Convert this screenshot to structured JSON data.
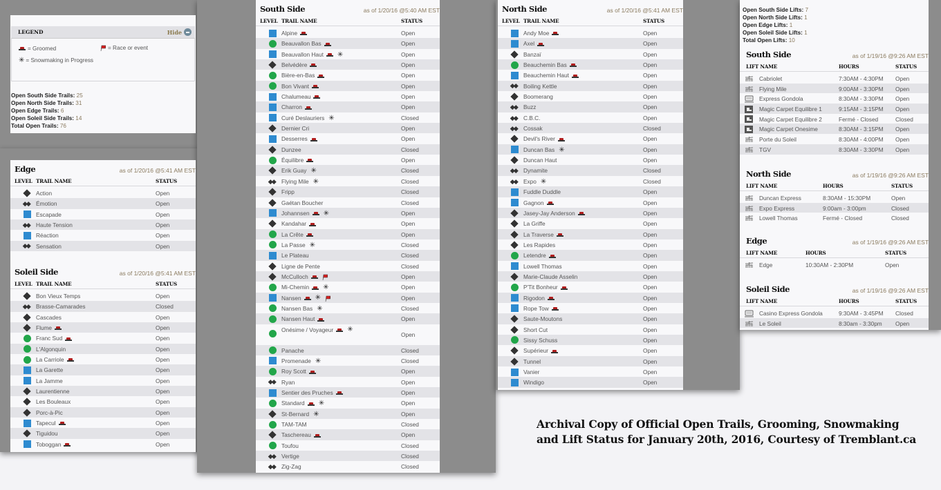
{
  "legend": {
    "title": "LEGEND",
    "hide_label": "Hide",
    "groomed": "= Groomed",
    "race": "= Race or event",
    "snowmaking": "= Snowmaking in Progress"
  },
  "trail_stats": [
    {
      "label": "Open South Side Trails:",
      "value": "25"
    },
    {
      "label": "Open North Side Trails:",
      "value": "31"
    },
    {
      "label": "Open Edge Trails:",
      "value": "6"
    },
    {
      "label": "Open Soleil Side Trails:",
      "value": "14"
    },
    {
      "label": "Total Open Trails:",
      "value": "76"
    }
  ],
  "lift_stats": [
    {
      "label": "Open South Side Lifts:",
      "value": "7"
    },
    {
      "label": "Open North Side Lifts:",
      "value": "1"
    },
    {
      "label": "Open Edge Lifts:",
      "value": "1"
    },
    {
      "label": "Open Soleil Side Lifts:",
      "value": "1"
    },
    {
      "label": "Total Open Lifts:",
      "value": "10"
    }
  ],
  "trail_columns": {
    "level": "LEVEL",
    "name": "TRAIL NAME",
    "status": "STATUS"
  },
  "lift_columns": {
    "name": "LIFT NAME",
    "hours": "HOURS",
    "status": "STATUS"
  },
  "colors": {
    "green": "#22a64a",
    "blue": "#2e8bd0",
    "black": "#333333",
    "panel_gray": "#8c8c8c"
  },
  "trails": {
    "south": {
      "title": "South Side",
      "as_of": "as of 1/20/16 @5:40 AM EST",
      "rows": [
        {
          "level": "blue-square",
          "name": "Alpine",
          "tags": [
            "groomed"
          ],
          "status": "Open"
        },
        {
          "level": "green-circle",
          "name": "Beauvallon Bas",
          "tags": [
            "groomed"
          ],
          "status": "Open"
        },
        {
          "level": "blue-square",
          "name": "Beauvallon Haut",
          "tags": [
            "groomed",
            "snowmaking"
          ],
          "status": "Open"
        },
        {
          "level": "black-diamond",
          "name": "Belvédère",
          "tags": [
            "groomed"
          ],
          "status": "Open"
        },
        {
          "level": "green-circle",
          "name": "Bière-en-Bas",
          "tags": [
            "groomed"
          ],
          "status": "Open"
        },
        {
          "level": "green-circle",
          "name": "Bon Vivant",
          "tags": [
            "groomed"
          ],
          "status": "Open"
        },
        {
          "level": "blue-square",
          "name": "Chalumeau",
          "tags": [
            "groomed"
          ],
          "status": "Open"
        },
        {
          "level": "blue-square",
          "name": "Charron",
          "tags": [
            "groomed"
          ],
          "status": "Open"
        },
        {
          "level": "blue-square",
          "name": "Curé Deslauriers",
          "tags": [
            "snowmaking"
          ],
          "status": "Closed"
        },
        {
          "level": "black-diamond",
          "name": "Dernier Cri",
          "tags": [],
          "status": "Open"
        },
        {
          "level": "blue-square",
          "name": "Desserres",
          "tags": [
            "groomed"
          ],
          "status": "Open"
        },
        {
          "level": "black-diamond",
          "name": "Dunzee",
          "tags": [],
          "status": "Closed"
        },
        {
          "level": "green-circle",
          "name": "Équilibre",
          "tags": [
            "groomed"
          ],
          "status": "Open"
        },
        {
          "level": "black-diamond",
          "name": "Erik Guay",
          "tags": [
            "snowmaking"
          ],
          "status": "Closed"
        },
        {
          "level": "double-black-diamond",
          "name": "Flying Mile",
          "tags": [
            "snowmaking"
          ],
          "status": "Closed"
        },
        {
          "level": "black-diamond",
          "name": "Fripp",
          "tags": [],
          "status": "Closed"
        },
        {
          "level": "black-diamond",
          "name": "Gaétan Boucher",
          "tags": [],
          "status": "Closed"
        },
        {
          "level": "blue-square",
          "name": "Johannsen",
          "tags": [
            "groomed",
            "snowmaking"
          ],
          "status": "Open"
        },
        {
          "level": "black-diamond",
          "name": "Kandahar",
          "tags": [
            "groomed"
          ],
          "status": "Open"
        },
        {
          "level": "green-circle",
          "name": "La Crête",
          "tags": [
            "groomed"
          ],
          "status": "Open"
        },
        {
          "level": "green-circle",
          "name": "La Passe",
          "tags": [
            "snowmaking"
          ],
          "status": "Closed"
        },
        {
          "level": "blue-square",
          "name": "Le Plateau",
          "tags": [],
          "status": "Closed"
        },
        {
          "level": "black-diamond",
          "name": "Ligne de Pente",
          "tags": [],
          "status": "Closed"
        },
        {
          "level": "black-diamond",
          "name": "McCulloch",
          "tags": [
            "groomed",
            "race"
          ],
          "status": "Open"
        },
        {
          "level": "green-circle",
          "name": "Mi-Chemin",
          "tags": [
            "groomed",
            "snowmaking"
          ],
          "status": "Open"
        },
        {
          "level": "blue-square",
          "name": "Nansen",
          "tags": [
            "groomed",
            "snowmaking",
            "race"
          ],
          "status": "Open"
        },
        {
          "level": "green-circle",
          "name": "Nansen Bas",
          "tags": [
            "snowmaking"
          ],
          "status": "Closed"
        },
        {
          "level": "green-circle",
          "name": "Nansen Haut",
          "tags": [
            "groomed"
          ],
          "status": "Open"
        },
        {
          "level": "green-circle",
          "name": "Onésime / Voyageur",
          "tags": [
            "groomed",
            "snowmaking"
          ],
          "status": "Open",
          "wrap": true
        },
        {
          "level": "green-circle",
          "name": "Panache",
          "tags": [],
          "status": "Closed"
        },
        {
          "level": "blue-square",
          "name": "Promenade",
          "tags": [
            "snowmaking"
          ],
          "status": "Closed"
        },
        {
          "level": "green-circle",
          "name": "Roy Scott",
          "tags": [
            "groomed"
          ],
          "status": "Open"
        },
        {
          "level": "double-black-diamond",
          "name": "Ryan",
          "tags": [],
          "status": "Open"
        },
        {
          "level": "blue-square",
          "name": "Sentier des Pruches",
          "tags": [
            "groomed"
          ],
          "status": "Open"
        },
        {
          "level": "green-circle",
          "name": "Standard",
          "tags": [
            "groomed",
            "snowmaking"
          ],
          "status": "Open"
        },
        {
          "level": "black-diamond",
          "name": "St-Bernard",
          "tags": [
            "snowmaking"
          ],
          "status": "Open"
        },
        {
          "level": "green-circle",
          "name": "TAM-TAM",
          "tags": [],
          "status": "Closed"
        },
        {
          "level": "black-diamond",
          "name": "Taschereau",
          "tags": [
            "groomed"
          ],
          "status": "Open"
        },
        {
          "level": "green-circle",
          "name": "Toufou",
          "tags": [],
          "status": "Closed"
        },
        {
          "level": "double-black-diamond",
          "name": "Vertige",
          "tags": [],
          "status": "Closed"
        },
        {
          "level": "double-black-diamond",
          "name": "Zig-Zag",
          "tags": [],
          "status": "Closed"
        }
      ]
    },
    "north": {
      "title": "North Side",
      "as_of": "as of 1/20/16 @5:41 AM EST",
      "rows": [
        {
          "level": "blue-square",
          "name": "Andy Moe",
          "tags": [
            "groomed"
          ],
          "status": "Open"
        },
        {
          "level": "blue-square",
          "name": "Axel",
          "tags": [
            "groomed"
          ],
          "status": "Open"
        },
        {
          "level": "black-diamond",
          "name": "Banzaï",
          "tags": [],
          "status": "Open"
        },
        {
          "level": "green-circle",
          "name": "Beauchemin Bas",
          "tags": [
            "groomed"
          ],
          "status": "Open"
        },
        {
          "level": "blue-square",
          "name": "Beauchemin Haut",
          "tags": [
            "groomed"
          ],
          "status": "Open"
        },
        {
          "level": "double-black-diamond",
          "name": "Boiling Kettle",
          "tags": [],
          "status": "Open"
        },
        {
          "level": "black-diamond",
          "name": "Boomerang",
          "tags": [],
          "status": "Open"
        },
        {
          "level": "double-black-diamond",
          "name": "Buzz",
          "tags": [],
          "status": "Open"
        },
        {
          "level": "double-black-diamond",
          "name": "C.B.C.",
          "tags": [],
          "status": "Open"
        },
        {
          "level": "double-black-diamond",
          "name": "Cossak",
          "tags": [],
          "status": "Closed"
        },
        {
          "level": "black-diamond",
          "name": "Devil's River",
          "tags": [
            "groomed"
          ],
          "status": "Open"
        },
        {
          "level": "blue-square",
          "name": "Duncan Bas",
          "tags": [
            "snowmaking"
          ],
          "status": "Open"
        },
        {
          "level": "black-diamond",
          "name": "Duncan Haut",
          "tags": [],
          "status": "Open"
        },
        {
          "level": "double-black-diamond",
          "name": "Dynamite",
          "tags": [],
          "status": "Closed"
        },
        {
          "level": "double-black-diamond",
          "name": "Expo",
          "tags": [
            "snowmaking"
          ],
          "status": "Closed"
        },
        {
          "level": "blue-square",
          "name": "Fuddle Duddle",
          "tags": [],
          "status": "Open"
        },
        {
          "level": "blue-square",
          "name": "Gagnon",
          "tags": [
            "groomed"
          ],
          "status": "Open"
        },
        {
          "level": "black-diamond",
          "name": "Jasey-Jay Anderson",
          "tags": [
            "groomed"
          ],
          "status": "Open"
        },
        {
          "level": "black-diamond",
          "name": "La Griffe",
          "tags": [],
          "status": "Open"
        },
        {
          "level": "black-diamond",
          "name": "La Traverse",
          "tags": [
            "groomed"
          ],
          "status": "Open"
        },
        {
          "level": "black-diamond",
          "name": "Les Rapides",
          "tags": [],
          "status": "Open"
        },
        {
          "level": "green-circle",
          "name": "Letendre",
          "tags": [
            "groomed"
          ],
          "status": "Open"
        },
        {
          "level": "blue-square",
          "name": "Lowell Thomas",
          "tags": [],
          "status": "Open"
        },
        {
          "level": "black-diamond",
          "name": "Marie-Claude Asselin",
          "tags": [],
          "status": "Open"
        },
        {
          "level": "green-circle",
          "name": "P'Tit Bonheur",
          "tags": [
            "groomed"
          ],
          "status": "Open"
        },
        {
          "level": "blue-square",
          "name": "Rigodon",
          "tags": [
            "groomed"
          ],
          "status": "Open"
        },
        {
          "level": "blue-square",
          "name": "Rope Tow",
          "tags": [
            "groomed"
          ],
          "status": "Open"
        },
        {
          "level": "black-diamond",
          "name": "Saute-Moutons",
          "tags": [],
          "status": "Open"
        },
        {
          "level": "black-diamond",
          "name": "Short Cut",
          "tags": [],
          "status": "Open"
        },
        {
          "level": "green-circle",
          "name": "Sissy Schuss",
          "tags": [],
          "status": "Open"
        },
        {
          "level": "black-diamond",
          "name": "Supérieur",
          "tags": [
            "groomed"
          ],
          "status": "Open"
        },
        {
          "level": "black-diamond",
          "name": "Tunnel",
          "tags": [],
          "status": "Open"
        },
        {
          "level": "blue-square",
          "name": "Vanier",
          "tags": [],
          "status": "Open"
        },
        {
          "level": "blue-square",
          "name": "Windigo",
          "tags": [],
          "status": "Open"
        }
      ]
    },
    "edge": {
      "title": "Edge",
      "as_of": "as of 1/20/16 @5:41 AM EST",
      "rows": [
        {
          "level": "black-diamond",
          "name": "Action",
          "tags": [],
          "status": "Open"
        },
        {
          "level": "double-black-diamond",
          "name": "Émotion",
          "tags": [],
          "status": "Open"
        },
        {
          "level": "blue-square",
          "name": "Escapade",
          "tags": [],
          "status": "Open"
        },
        {
          "level": "double-black-diamond",
          "name": "Haute Tension",
          "tags": [],
          "status": "Open"
        },
        {
          "level": "blue-square",
          "name": "Réaction",
          "tags": [],
          "status": "Open"
        },
        {
          "level": "double-black-diamond",
          "name": "Sensation",
          "tags": [],
          "status": "Open"
        }
      ]
    },
    "soleil": {
      "title": "Soleil Side",
      "as_of": "as of 1/20/16 @5:41 AM EST",
      "rows": [
        {
          "level": "black-diamond",
          "name": "Bon Vieux Temps",
          "tags": [],
          "status": "Open"
        },
        {
          "level": "double-black-diamond",
          "name": "Brasse-Camarades",
          "tags": [],
          "status": "Closed"
        },
        {
          "level": "black-diamond",
          "name": "Cascades",
          "tags": [],
          "status": "Open"
        },
        {
          "level": "black-diamond",
          "name": "Flume",
          "tags": [
            "groomed"
          ],
          "status": "Open"
        },
        {
          "level": "green-circle",
          "name": "Franc Sud",
          "tags": [
            "groomed"
          ],
          "status": "Open"
        },
        {
          "level": "green-circle",
          "name": "L'Algonquin",
          "tags": [],
          "status": "Open"
        },
        {
          "level": "green-circle",
          "name": "La Carriole",
          "tags": [
            "groomed"
          ],
          "status": "Open"
        },
        {
          "level": "blue-square",
          "name": "La Garette",
          "tags": [],
          "status": "Open"
        },
        {
          "level": "blue-square",
          "name": "La Jamme",
          "tags": [],
          "status": "Open"
        },
        {
          "level": "black-diamond",
          "name": "Laurentienne",
          "tags": [],
          "status": "Open"
        },
        {
          "level": "black-diamond",
          "name": "Les Bouleaux",
          "tags": [],
          "status": "Open"
        },
        {
          "level": "black-diamond",
          "name": "Porc-à-Pic",
          "tags": [],
          "status": "Open"
        },
        {
          "level": "blue-square",
          "name": "Tapecul",
          "tags": [
            "groomed"
          ],
          "status": "Open"
        },
        {
          "level": "black-diamond",
          "name": "Tiguidou",
          "tags": [],
          "status": "Open"
        },
        {
          "level": "blue-square",
          "name": "Toboggan",
          "tags": [
            "groomed"
          ],
          "status": "Open"
        }
      ]
    }
  },
  "lifts": {
    "south": {
      "title": "South Side",
      "as_of": "as of 1/19/16 @9:26 AM EST",
      "rows": [
        {
          "type": "chairlift",
          "name": "Cabriolet",
          "hours": "7:30AM - 4:30PM",
          "status": "Open"
        },
        {
          "type": "chairlift",
          "name": "Flying Mile",
          "hours": "9:00AM - 3:30PM",
          "status": "Open"
        },
        {
          "type": "gondola",
          "name": "Express Gondola",
          "hours": "8:30AM - 3:30PM",
          "status": "Open"
        },
        {
          "type": "magic-carpet",
          "name": "Magic Carpet Equilibre 1",
          "hours": "9:15AM - 3:15PM",
          "status": "Open"
        },
        {
          "type": "magic-carpet",
          "name": "Magic Carpet Equilibre 2",
          "hours": "Fermé - Closed",
          "status": "Closed"
        },
        {
          "type": "magic-carpet",
          "name": "Magic Carpet Onesime",
          "hours": "8:30AM - 3:15PM",
          "status": "Open"
        },
        {
          "type": "chairlift",
          "name": "Porte du Soleil",
          "hours": "8:30AM - 4:00PM",
          "status": "Open"
        },
        {
          "type": "chairlift",
          "name": "TGV",
          "hours": "8:30AM - 3:30PM",
          "status": "Open"
        }
      ]
    },
    "north": {
      "title": "North Side",
      "as_of": "as of 1/19/16 @9:26 AM EST",
      "rows": [
        {
          "type": "chairlift",
          "name": "Duncan Express",
          "hours": "8:30AM - 15:30PM",
          "status": "Open"
        },
        {
          "type": "chairlift",
          "name": "Expo Express",
          "hours": "9:00am - 3:00pm",
          "status": "Closed"
        },
        {
          "type": "chairlift",
          "name": "Lowell Thomas",
          "hours": "Fermé - Closed",
          "status": "Closed"
        }
      ]
    },
    "edge": {
      "title": "Edge",
      "as_of": "as of 1/19/16 @9:26 AM EST",
      "rows": [
        {
          "type": "chairlift",
          "name": "Edge",
          "hours": "10:30AM - 2:30PM",
          "status": "Open"
        }
      ]
    },
    "soleil": {
      "title": "Soleil Side",
      "as_of": "as of 1/19/16 @9:26 AM EST",
      "rows": [
        {
          "type": "gondola",
          "name": "Casino Express Gondola",
          "hours": "9:30AM - 3:45PM",
          "status": "Closed"
        },
        {
          "type": "chairlift",
          "name": "Le Soleil",
          "hours": "8:30am - 3:30pm",
          "status": "Open"
        }
      ]
    }
  },
  "caption": {
    "line1": "Archival Copy of Official Open Trails, Grooming, Snowmaking",
    "line2": "and Lift Status for January 20th, 2016, Courtesy of Tremblant.ca"
  }
}
